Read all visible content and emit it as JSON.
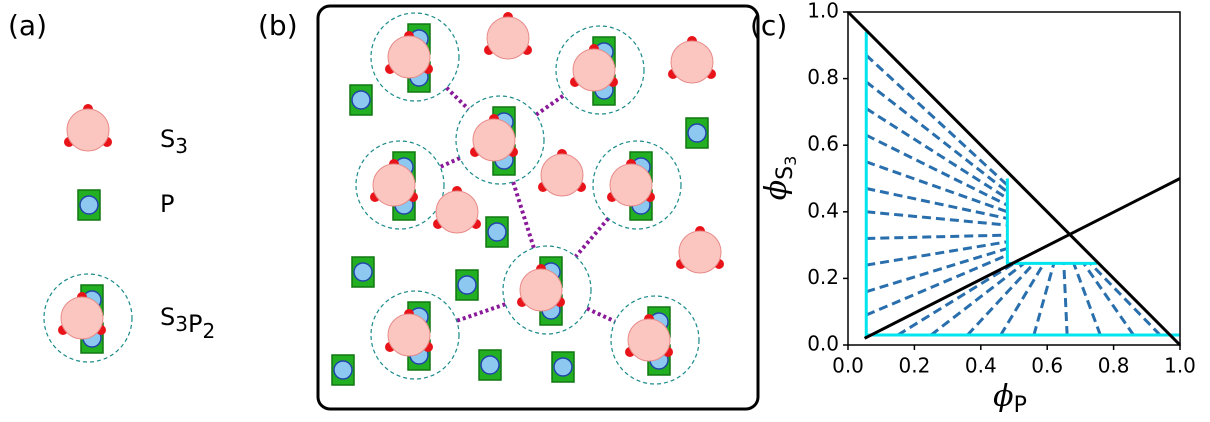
{
  "panel_labels": [
    "(a)",
    "(b)",
    "(c)"
  ],
  "legend_items": [
    {
      "parts": [
        {
          "base": "S",
          "sub": "3"
        }
      ]
    },
    {
      "parts": [
        {
          "base": "P"
        }
      ]
    },
    {
      "parts": [
        {
          "base": "S",
          "sub": "3"
        },
        {
          "base": "P",
          "sub": "2"
        }
      ]
    }
  ],
  "chart_data": {
    "type": "line",
    "x_label": {
      "symbol": "ϕ",
      "sub": "P"
    },
    "y_label": {
      "symbol": "ϕ",
      "sub": "S",
      "subsub": "3"
    },
    "xlim": [
      0,
      1
    ],
    "ylim": [
      0,
      1
    ],
    "xticks": [
      {
        "value": 0,
        "label": "0.0"
      },
      0.2,
      0.4,
      0.6,
      0.8,
      {
        "value": 1,
        "label": "1.0"
      }
    ],
    "yticks": [
      {
        "value": 0,
        "label": "0.0"
      },
      0.2,
      0.4,
      0.6,
      0.8,
      {
        "value": 1,
        "label": "1.0"
      }
    ],
    "series": [
      {
        "color": "#2a6fad",
        "dashed": true,
        "x": [
          0.055,
          0.48,
          null,
          0.055,
          0.48,
          null,
          0.055,
          0.48,
          null,
          0.055,
          0.48,
          null,
          0.055,
          0.48,
          null,
          0.055,
          0.48,
          null,
          0.055,
          0.48,
          null,
          0.055,
          0.48,
          null,
          0.055,
          0.48,
          null,
          0.055,
          0.48,
          null,
          0.055,
          0.48,
          null,
          0.15,
          0.5,
          null,
          0.25,
          0.53,
          null,
          0.36,
          0.56,
          null,
          0.46,
          0.59,
          null,
          0.56,
          0.62,
          null,
          0.66,
          0.65,
          null,
          0.76,
          0.68,
          null,
          0.86,
          0.71,
          null,
          0.94,
          0.73
        ],
        "values": [
          0.87,
          0.48,
          null,
          0.79,
          0.46,
          null,
          0.71,
          0.44,
          null,
          0.63,
          0.42,
          null,
          0.55,
          0.4,
          null,
          0.47,
          0.38,
          null,
          0.4,
          0.36,
          null,
          0.32,
          0.33,
          null,
          0.24,
          0.31,
          null,
          0.16,
          0.29,
          null,
          0.09,
          0.27,
          null,
          0.03,
          0.245,
          null,
          0.03,
          0.245,
          null,
          0.03,
          0.245,
          null,
          0.03,
          0.245,
          null,
          0.03,
          0.245,
          null,
          0.03,
          0.245,
          null,
          0.03,
          0.245,
          null,
          0.03,
          0.245,
          null,
          0.03,
          0.245
        ]
      },
      {
        "color": "#00e5ee",
        "x": [
          0.055,
          0.055,
          null,
          0.48,
          0.48,
          0.75,
          null,
          0.055,
          1.0
        ],
        "values": [
          0.94,
          0.02,
          null,
          0.5,
          0.245,
          0.245,
          null,
          0.03,
          0.03
        ]
      },
      {
        "color": "#000000",
        "x": [
          0,
          1
        ],
        "values": [
          1,
          0
        ]
      },
      {
        "color": "#000000",
        "x": [
          0.05,
          1
        ],
        "values": [
          0.02,
          0.5
        ]
      }
    ]
  }
}
